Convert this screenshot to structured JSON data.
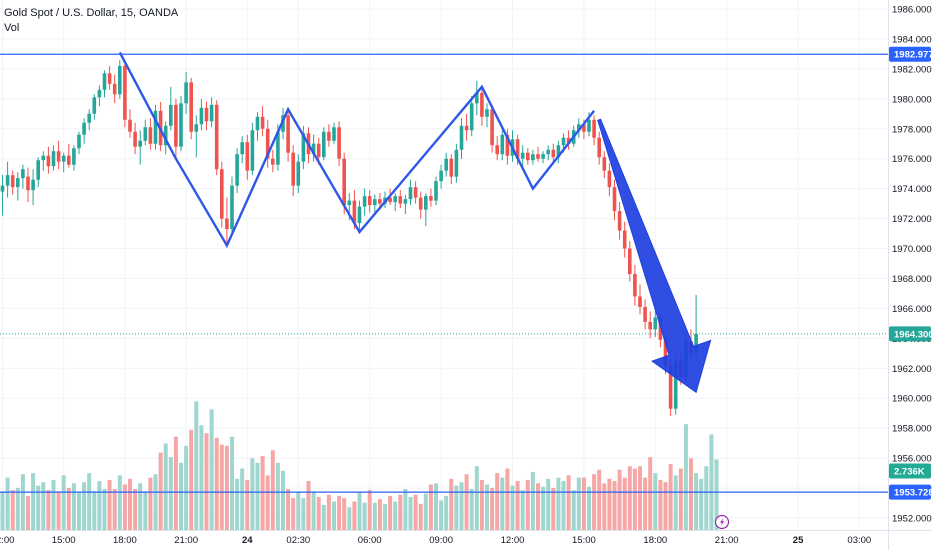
{
  "header": {
    "symbol_title": "Gold Spot / U.S. Dollar, 15, OANDA",
    "volume_label": "Vol"
  },
  "colors": {
    "up": "#26a69a",
    "down": "#ef5350",
    "vol_up": "#9fd6cf",
    "vol_down": "#f5a6a5",
    "hline": "#2962ff",
    "pattern": "#2f57e8",
    "arrow": "#1e3fe0",
    "last_price": "#26a69a",
    "grid": "#f0f3fa",
    "axis_text": "#131722"
  },
  "badges": {
    "resistance": "1982.977",
    "last_price": "1964.300",
    "volume": "2.736K",
    "support": "1953.728"
  },
  "chart_data": {
    "type": "candlestick",
    "title": "Gold Spot / U.S. Dollar, 15, OANDA",
    "yticks": [
      "1952.000",
      "1954.000",
      "1956.000",
      "1958.000",
      "1960.000",
      "1962.000",
      "1964.000",
      "1966.000",
      "1968.000",
      "1970.000",
      "1972.000",
      "1974.000",
      "1976.000",
      "1978.000",
      "1980.000",
      "1982.000",
      "1984.000",
      "1986.000"
    ],
    "ytick_values": [
      1952,
      1954,
      1956,
      1958,
      1960,
      1962,
      1964,
      1966,
      1968,
      1970,
      1972,
      1974,
      1976,
      1978,
      1980,
      1982,
      1984,
      1986
    ],
    "ylim": [
      1951.2,
      1986.6
    ],
    "xticks": [
      {
        "label": "12:00",
        "i": 0
      },
      {
        "label": "15:00",
        "i": 12
      },
      {
        "label": "18:00",
        "i": 24
      },
      {
        "label": "21:00",
        "i": 36
      },
      {
        "label": "24",
        "i": 48
      },
      {
        "label": "02:30",
        "i": 58
      },
      {
        "label": "06:00",
        "i": 72
      },
      {
        "label": "09:00",
        "i": 86
      },
      {
        "label": "12:00",
        "i": 100
      },
      {
        "label": "15:00",
        "i": 114
      },
      {
        "label": "18:00",
        "i": 128
      },
      {
        "label": "21:00",
        "i": 142
      },
      {
        "label": "25",
        "i": 156
      },
      {
        "label": "03:00",
        "i": 168
      }
    ],
    "horizontal_lines": [
      {
        "label": "resistance",
        "price": 1982.977
      },
      {
        "label": "support",
        "price": 1953.728
      }
    ],
    "last_price": 1964.3,
    "pattern_points": [
      {
        "i": 23,
        "p": 1983.1
      },
      {
        "i": 34,
        "p": 1976.0
      },
      {
        "i": 44,
        "p": 1970.2
      },
      {
        "i": 56,
        "p": 1979.3
      },
      {
        "i": 70,
        "p": 1971.1
      },
      {
        "i": 94,
        "p": 1980.8
      },
      {
        "i": 104,
        "p": 1974.0
      },
      {
        "i": 116,
        "p": 1979.2
      }
    ],
    "arrow": {
      "from": {
        "i": 117,
        "p": 1978.6
      },
      "to": {
        "i": 136,
        "p": 1960.4
      }
    },
    "candles": [
      [
        1973.8,
        1974.9,
        1972.2,
        1974.2
      ],
      [
        1974.2,
        1975.8,
        1973.4,
        1974.9
      ],
      [
        1974.9,
        1975.2,
        1973.6,
        1974.1
      ],
      [
        1974.1,
        1975.1,
        1973.2,
        1974.7
      ],
      [
        1974.7,
        1975.6,
        1974.0,
        1975.3
      ],
      [
        1974.8,
        1975.4,
        1973.1,
        1973.9
      ],
      [
        1973.9,
        1975.3,
        1972.9,
        1974.6
      ],
      [
        1974.6,
        1976.1,
        1974.1,
        1975.9
      ],
      [
        1975.9,
        1976.5,
        1975.2,
        1976.2
      ],
      [
        1976.2,
        1976.8,
        1975.0,
        1975.5
      ],
      [
        1975.5,
        1976.9,
        1975.2,
        1976.5
      ],
      [
        1976.5,
        1977.2,
        1975.3,
        1975.8
      ],
      [
        1975.8,
        1976.4,
        1975.1,
        1976.2
      ],
      [
        1976.2,
        1977.0,
        1975.4,
        1975.6
      ],
      [
        1975.6,
        1976.9,
        1975.2,
        1976.7
      ],
      [
        1976.7,
        1977.8,
        1976.3,
        1977.6
      ],
      [
        1977.6,
        1978.7,
        1977.0,
        1978.4
      ],
      [
        1978.4,
        1979.3,
        1977.9,
        1979.0
      ],
      [
        1979.0,
        1980.3,
        1978.6,
        1980.1
      ],
      [
        1980.1,
        1980.9,
        1979.5,
        1980.6
      ],
      [
        1980.6,
        1981.9,
        1980.1,
        1981.7
      ],
      [
        1981.7,
        1982.2,
        1980.6,
        1981.0
      ],
      [
        1981.0,
        1981.6,
        1979.7,
        1980.3
      ],
      [
        1980.3,
        1982.6,
        1980.0,
        1982.2
      ],
      [
        1982.2,
        1982.4,
        1978.1,
        1978.6
      ],
      [
        1978.6,
        1979.3,
        1977.4,
        1977.8
      ],
      [
        1977.8,
        1978.4,
        1976.3,
        1976.8
      ],
      [
        1976.8,
        1977.9,
        1975.6,
        1977.2
      ],
      [
        1977.2,
        1978.6,
        1976.9,
        1978.1
      ],
      [
        1978.1,
        1978.7,
        1976.6,
        1977.0
      ],
      [
        1977.0,
        1979.6,
        1976.6,
        1979.2
      ],
      [
        1979.2,
        1979.8,
        1976.5,
        1976.9
      ],
      [
        1976.9,
        1978.5,
        1976.3,
        1978.2
      ],
      [
        1978.2,
        1980.8,
        1977.9,
        1979.6
      ],
      [
        1979.6,
        1980.0,
        1976.0,
        1976.8
      ],
      [
        1976.8,
        1980.2,
        1976.5,
        1979.7
      ],
      [
        1979.7,
        1981.8,
        1979.0,
        1981.1
      ],
      [
        1981.1,
        1981.4,
        1977.3,
        1977.8
      ],
      [
        1977.8,
        1978.9,
        1976.1,
        1978.3
      ],
      [
        1978.3,
        1980.0,
        1977.9,
        1979.4
      ],
      [
        1979.4,
        1979.8,
        1977.9,
        1978.5
      ],
      [
        1978.5,
        1980.1,
        1978.1,
        1979.6
      ],
      [
        1979.6,
        1979.9,
        1974.9,
        1975.3
      ],
      [
        1975.3,
        1975.8,
        1971.4,
        1972.0
      ],
      [
        1972.0,
        1973.4,
        1970.4,
        1971.3
      ],
      [
        1971.3,
        1974.8,
        1970.9,
        1974.2
      ],
      [
        1974.2,
        1976.7,
        1973.7,
        1976.3
      ],
      [
        1976.3,
        1977.5,
        1975.7,
        1977.1
      ],
      [
        1977.1,
        1977.6,
        1974.6,
        1975.2
      ],
      [
        1975.2,
        1978.4,
        1974.9,
        1977.9
      ],
      [
        1977.9,
        1979.1,
        1977.2,
        1978.8
      ],
      [
        1978.8,
        1979.5,
        1977.5,
        1978.0
      ],
      [
        1978.0,
        1978.6,
        1975.4,
        1976.0
      ],
      [
        1976.0,
        1976.6,
        1975.1,
        1975.6
      ],
      [
        1975.6,
        1978.3,
        1975.2,
        1977.8
      ],
      [
        1977.8,
        1979.4,
        1977.3,
        1978.9
      ],
      [
        1978.9,
        1979.1,
        1975.8,
        1976.4
      ],
      [
        1976.4,
        1976.9,
        1973.5,
        1974.2
      ],
      [
        1974.2,
        1976.3,
        1973.7,
        1975.8
      ],
      [
        1975.8,
        1978.2,
        1975.3,
        1977.7
      ],
      [
        1977.7,
        1978.1,
        1975.7,
        1976.3
      ],
      [
        1976.3,
        1977.6,
        1975.8,
        1977.0
      ],
      [
        1977.0,
        1977.4,
        1975.6,
        1976.1
      ],
      [
        1976.1,
        1978.1,
        1975.9,
        1977.8
      ],
      [
        1977.8,
        1978.3,
        1976.8,
        1977.2
      ],
      [
        1977.2,
        1978.4,
        1977.0,
        1978.1
      ],
      [
        1978.1,
        1978.5,
        1975.5,
        1976.0
      ],
      [
        1976.0,
        1976.4,
        1972.3,
        1972.9
      ],
      [
        1972.9,
        1973.7,
        1971.9,
        1973.2
      ],
      [
        1973.2,
        1973.9,
        1971.3,
        1971.7
      ],
      [
        1971.7,
        1973.2,
        1971.2,
        1972.8
      ],
      [
        1972.8,
        1974.0,
        1972.2,
        1973.5
      ],
      [
        1973.5,
        1973.9,
        1972.4,
        1972.9
      ],
      [
        1972.9,
        1973.6,
        1972.4,
        1973.3
      ],
      [
        1973.3,
        1973.7,
        1972.6,
        1973.0
      ],
      [
        1973.0,
        1973.8,
        1972.7,
        1973.4
      ],
      [
        1973.4,
        1974.0,
        1972.9,
        1973.1
      ],
      [
        1973.1,
        1973.7,
        1972.5,
        1973.5
      ],
      [
        1973.5,
        1973.9,
        1972.7,
        1973.0
      ],
      [
        1973.0,
        1973.6,
        1972.3,
        1973.3
      ],
      [
        1973.3,
        1974.6,
        1972.9,
        1974.1
      ],
      [
        1974.1,
        1974.5,
        1973.0,
        1973.4
      ],
      [
        1973.4,
        1973.8,
        1972.0,
        1972.6
      ],
      [
        1972.6,
        1973.7,
        1971.5,
        1973.5
      ],
      [
        1973.5,
        1974.0,
        1972.8,
        1973.2
      ],
      [
        1973.2,
        1974.8,
        1972.9,
        1974.5
      ],
      [
        1974.5,
        1975.6,
        1974.0,
        1975.2
      ],
      [
        1975.2,
        1976.4,
        1974.8,
        1976.0
      ],
      [
        1976.0,
        1976.3,
        1974.3,
        1974.8
      ],
      [
        1974.8,
        1977.0,
        1974.4,
        1976.6
      ],
      [
        1976.6,
        1978.7,
        1976.0,
        1978.2
      ],
      [
        1978.2,
        1979.0,
        1977.2,
        1977.9
      ],
      [
        1977.9,
        1980.2,
        1977.5,
        1979.7
      ],
      [
        1979.7,
        1981.2,
        1978.9,
        1980.4
      ],
      [
        1980.4,
        1980.9,
        1978.2,
        1978.8
      ],
      [
        1978.8,
        1979.7,
        1978.1,
        1979.3
      ],
      [
        1979.3,
        1979.6,
        1976.4,
        1976.9
      ],
      [
        1976.9,
        1977.5,
        1975.9,
        1976.3
      ],
      [
        1976.3,
        1978.1,
        1975.9,
        1977.6
      ],
      [
        1977.6,
        1978.0,
        1975.6,
        1976.2
      ],
      [
        1976.2,
        1977.9,
        1975.8,
        1977.3
      ],
      [
        1977.3,
        1977.6,
        1975.6,
        1976.0
      ],
      [
        1976.0,
        1976.9,
        1975.5,
        1976.4
      ],
      [
        1976.4,
        1976.7,
        1975.6,
        1975.9
      ],
      [
        1975.9,
        1976.6,
        1975.6,
        1976.3
      ],
      [
        1976.3,
        1976.8,
        1975.8,
        1976.0
      ],
      [
        1976.0,
        1976.5,
        1975.7,
        1976.3
      ],
      [
        1976.3,
        1976.9,
        1975.9,
        1976.6
      ],
      [
        1976.6,
        1977.0,
        1975.8,
        1976.1
      ],
      [
        1976.1,
        1977.2,
        1975.7,
        1976.9
      ],
      [
        1976.9,
        1977.7,
        1976.4,
        1977.4
      ],
      [
        1977.4,
        1977.9,
        1976.6,
        1977.0
      ],
      [
        1977.0,
        1978.2,
        1976.8,
        1977.9
      ],
      [
        1977.9,
        1978.7,
        1977.4,
        1978.3
      ],
      [
        1978.3,
        1978.6,
        1977.3,
        1977.8
      ],
      [
        1977.8,
        1979.1,
        1977.5,
        1978.6
      ],
      [
        1978.6,
        1978.9,
        1976.9,
        1977.4
      ],
      [
        1977.4,
        1977.8,
        1975.6,
        1976.1
      ],
      [
        1976.1,
        1976.5,
        1974.7,
        1975.2
      ],
      [
        1975.2,
        1975.7,
        1973.5,
        1974.1
      ],
      [
        1974.1,
        1974.6,
        1971.9,
        1972.5
      ],
      [
        1972.5,
        1973.1,
        1970.6,
        1971.2
      ],
      [
        1971.2,
        1971.8,
        1969.4,
        1970.0
      ],
      [
        1970.0,
        1970.5,
        1967.8,
        1968.3
      ],
      [
        1968.3,
        1968.9,
        1966.2,
        1966.8
      ],
      [
        1966.8,
        1967.6,
        1965.6,
        1966.1
      ],
      [
        1966.1,
        1966.6,
        1964.6,
        1965.1
      ],
      [
        1965.1,
        1965.8,
        1964.0,
        1964.6
      ],
      [
        1964.6,
        1965.9,
        1964.1,
        1965.4
      ],
      [
        1965.4,
        1965.7,
        1963.4,
        1963.9
      ],
      [
        1963.9,
        1964.3,
        1961.6,
        1962.2
      ],
      [
        1962.2,
        1962.6,
        1958.8,
        1959.3
      ],
      [
        1959.3,
        1962.9,
        1958.9,
        1962.5
      ],
      [
        1962.5,
        1963.2,
        1960.9,
        1961.4
      ],
      [
        1961.4,
        1964.3,
        1961.0,
        1963.8
      ],
      [
        1963.8,
        1964.6,
        1962.4,
        1963.0
      ],
      [
        1963.0,
        1966.9,
        1962.6,
        1964.3
      ]
    ],
    "volume": [
      3.3,
      4.6,
      3.5,
      3.7,
      4.9,
      3.0,
      5.0,
      3.9,
      4.2,
      3.5,
      4.4,
      3.4,
      4.8,
      3.7,
      4.1,
      3.3,
      4.2,
      5.0,
      3.4,
      4.3,
      3.6,
      4.4,
      3.6,
      4.8,
      4.0,
      4.5,
      3.6,
      4.1,
      3.4,
      4.6,
      4.9,
      6.8,
      7.6,
      6.4,
      8.2,
      5.9,
      7.4,
      8.8,
      11.3,
      9.2,
      8.5,
      10.6,
      8.1,
      7.5,
      7.4,
      8.2,
      4.5,
      5.4,
      4.4,
      6.3,
      5.9,
      6.5,
      4.8,
      7.0,
      5.9,
      5.2,
      3.6,
      2.8,
      3.3,
      2.8,
      4.3,
      3.4,
      2.9,
      2.2,
      3.1,
      2.5,
      3.0,
      2.8,
      2.0,
      2.5,
      3.3,
      2.4,
      3.5,
      2.4,
      2.7,
      2.3,
      3.0,
      2.5,
      3.1,
      3.6,
      2.9,
      3.1,
      2.3,
      3.2,
      4.0,
      4.1,
      2.6,
      3.0,
      4.5,
      3.9,
      4.2,
      4.9,
      3.6,
      5.6,
      4.4,
      4.0,
      3.7,
      5.0,
      4.6,
      5.4,
      3.9,
      4.3,
      3.5,
      4.4,
      5.1,
      4.1,
      3.8,
      4.5,
      3.7,
      4.6,
      4.3,
      4.8,
      3.5,
      4.6,
      4.6,
      3.8,
      4.9,
      5.3,
      4.1,
      4.5,
      4.3,
      5.3,
      4.6,
      5.6,
      5.4,
      5.6,
      4.6,
      6.4,
      5.0,
      4.4,
      4.2,
      5.8,
      4.8,
      5.4,
      9.3,
      6.3,
      5.0,
      4.5,
      5.6,
      8.4,
      6.2
    ]
  }
}
